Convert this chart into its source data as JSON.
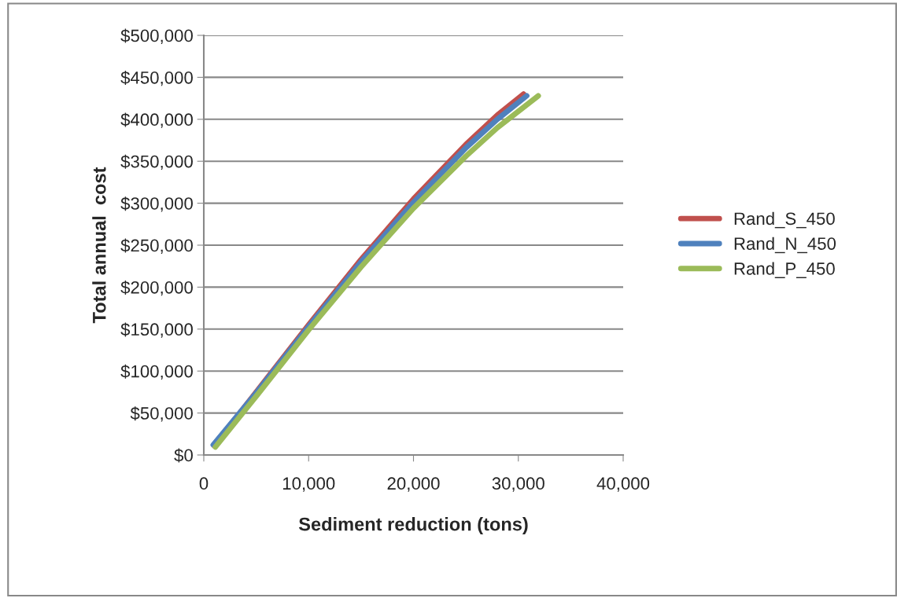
{
  "chart_data": {
    "type": "line",
    "xlabel": "Sediment reduction (tons)",
    "ylabel": "Total annual  cost",
    "xlim": [
      0,
      40000
    ],
    "xticks": [
      {
        "value": 0,
        "label": "0"
      },
      {
        "value": 10000,
        "label": "10,000"
      },
      {
        "value": 20000,
        "label": "20,000"
      },
      {
        "value": 30000,
        "label": "30,000"
      },
      {
        "value": 40000,
        "label": "40,000"
      }
    ],
    "ylim": [
      0,
      500000
    ],
    "yticks": [
      {
        "value": 0,
        "label": "$0"
      },
      {
        "value": 50000,
        "label": "$50,000"
      },
      {
        "value": 100000,
        "label": "$100,000"
      },
      {
        "value": 150000,
        "label": "$150,000"
      },
      {
        "value": 200000,
        "label": "$200,000"
      },
      {
        "value": 250000,
        "label": "$250,000"
      },
      {
        "value": 300000,
        "label": "$300,000"
      },
      {
        "value": 350000,
        "label": "$350,000"
      },
      {
        "value": 400000,
        "label": "$400,000"
      },
      {
        "value": 450000,
        "label": "$450,000"
      },
      {
        "value": 500000,
        "label": "$500,000"
      }
    ],
    "grid": "y",
    "legend": "right",
    "marker": "none",
    "line_style": "solid",
    "series": [
      {
        "name": "Rand_S_450",
        "color": "#c0504d",
        "x": [
          1000,
          5000,
          10000,
          15000,
          20000,
          25000,
          28000,
          30500
        ],
        "values": [
          11000,
          75000,
          155000,
          233000,
          305000,
          370000,
          405000,
          430000
        ]
      },
      {
        "name": "Rand_N_450",
        "color": "#4f81bd",
        "x": [
          900,
          5000,
          10000,
          15000,
          20000,
          25000,
          28000,
          30800
        ],
        "values": [
          12000,
          74000,
          153000,
          230000,
          301000,
          366000,
          400000,
          428000
        ]
      },
      {
        "name": "Rand_P_450",
        "color": "#9bbb59",
        "x": [
          1100,
          5000,
          10000,
          15000,
          20000,
          25000,
          28000,
          31900
        ],
        "values": [
          9500,
          70000,
          149000,
          224000,
          294000,
          356000,
          390000,
          428000
        ]
      }
    ]
  }
}
